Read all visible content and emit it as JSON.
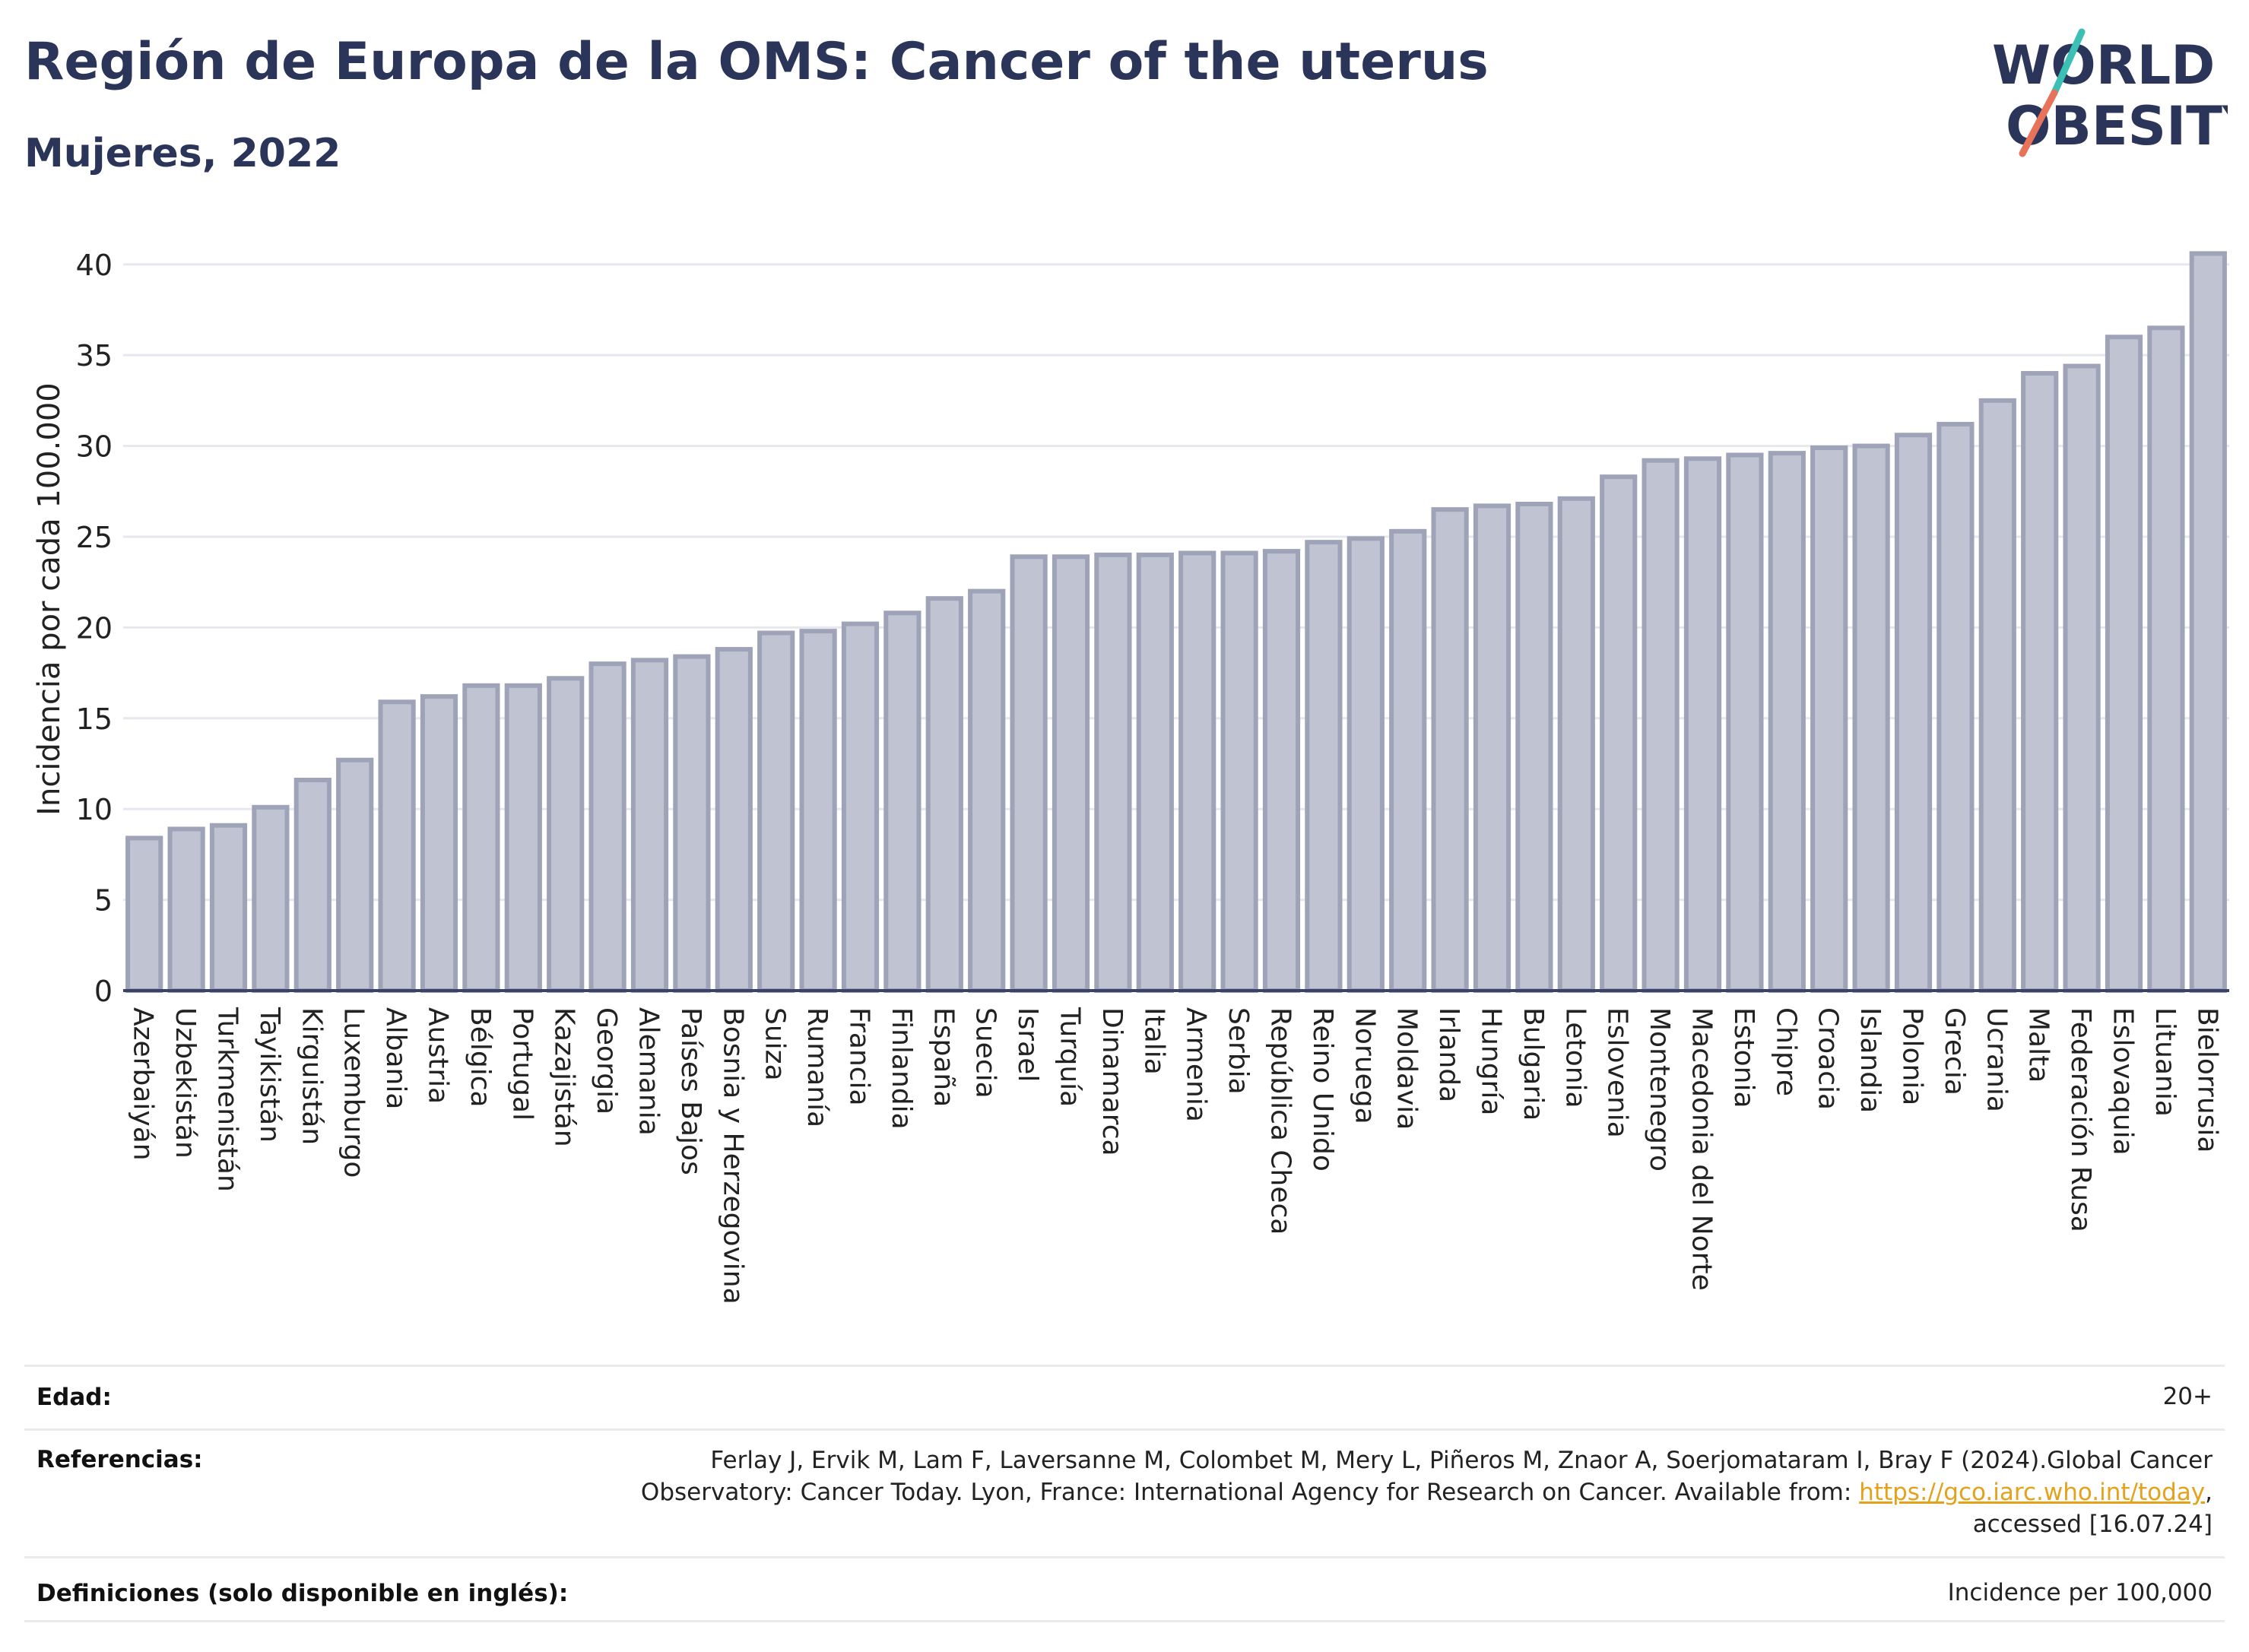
{
  "header": {
    "title": "Región de Europa de la OMS: Cancer of the uterus",
    "subtitle": "Mujeres, 2022"
  },
  "logo": {
    "line1": "WORLD",
    "line2": "OBESITY"
  },
  "colors": {
    "bar_fill": "#bfc3d2",
    "bar_stroke": "#9ea3b8",
    "text": "#2b3559",
    "link": "#e4a21b"
  },
  "chart_data": {
    "type": "bar",
    "ylabel": "Incidencia por cada 100.000",
    "ylim": [
      0,
      42
    ],
    "yticks": [
      0,
      5,
      10,
      15,
      20,
      25,
      30,
      35,
      40
    ],
    "grid": true,
    "categories": [
      "Azerbaiyán",
      "Uzbekistán",
      "Turkmenistán",
      "Tayikistán",
      "Kirguistán",
      "Luxemburgo",
      "Albania",
      "Austria",
      "Bélgica",
      "Portugal",
      "Kazajistán",
      "Georgia",
      "Alemania",
      "Países Bajos",
      "Bosnia y Herzegovina",
      "Suiza",
      "Rumanía",
      "Francia",
      "Finlandia",
      "España",
      "Suecia",
      "Israel",
      "Turquía",
      "Dinamarca",
      "Italia",
      "Armenia",
      "Serbia",
      "República Checa",
      "Reino Unido",
      "Noruega",
      "Moldavia",
      "Irlanda",
      "Hungría",
      "Bulgaria",
      "Letonia",
      "Eslovenia",
      "Montenegro",
      "Macedonia del Norte",
      "Estonia",
      "Chipre",
      "Croacia",
      "Islandia",
      "Polonia",
      "Grecia",
      "Ucrania",
      "Malta",
      "Federación Rusa",
      "Eslovaquia",
      "Lituania",
      "Bielorrusia"
    ],
    "values": [
      8.4,
      8.9,
      9.1,
      10.1,
      11.6,
      12.7,
      15.9,
      16.2,
      16.8,
      16.8,
      17.2,
      18.0,
      18.2,
      18.4,
      18.8,
      19.7,
      19.8,
      20.2,
      20.8,
      21.6,
      22.0,
      23.9,
      23.9,
      24.0,
      24.0,
      24.1,
      24.1,
      24.2,
      24.7,
      24.9,
      25.3,
      26.5,
      26.7,
      26.8,
      27.1,
      28.3,
      29.2,
      29.3,
      29.5,
      29.6,
      29.9,
      30.0,
      30.6,
      31.2,
      32.5,
      34.0,
      34.4,
      36.0,
      36.5,
      40.6
    ]
  },
  "meta": {
    "age_label": "Edad:",
    "age_value": "20+",
    "refs_label": "Referencias:",
    "refs_line1": "Ferlay J, Ervik M, Lam F, Laversanne M, Colombet M, Mery L, Piñeros M, Znaor A, Soerjomataram I, Bray F (2024).Global Cancer",
    "refs_line2_pre": "Observatory: Cancer Today. Lyon, France: International Agency for Research on Cancer. Available from: ",
    "refs_link": "https://gco.iarc.who.int/today",
    "refs_line2_post": ",",
    "refs_line3": "accessed [16.07.24]",
    "defs_label": "Definiciones (solo disponible en inglés):",
    "defs_value": "Incidence per 100,000"
  }
}
